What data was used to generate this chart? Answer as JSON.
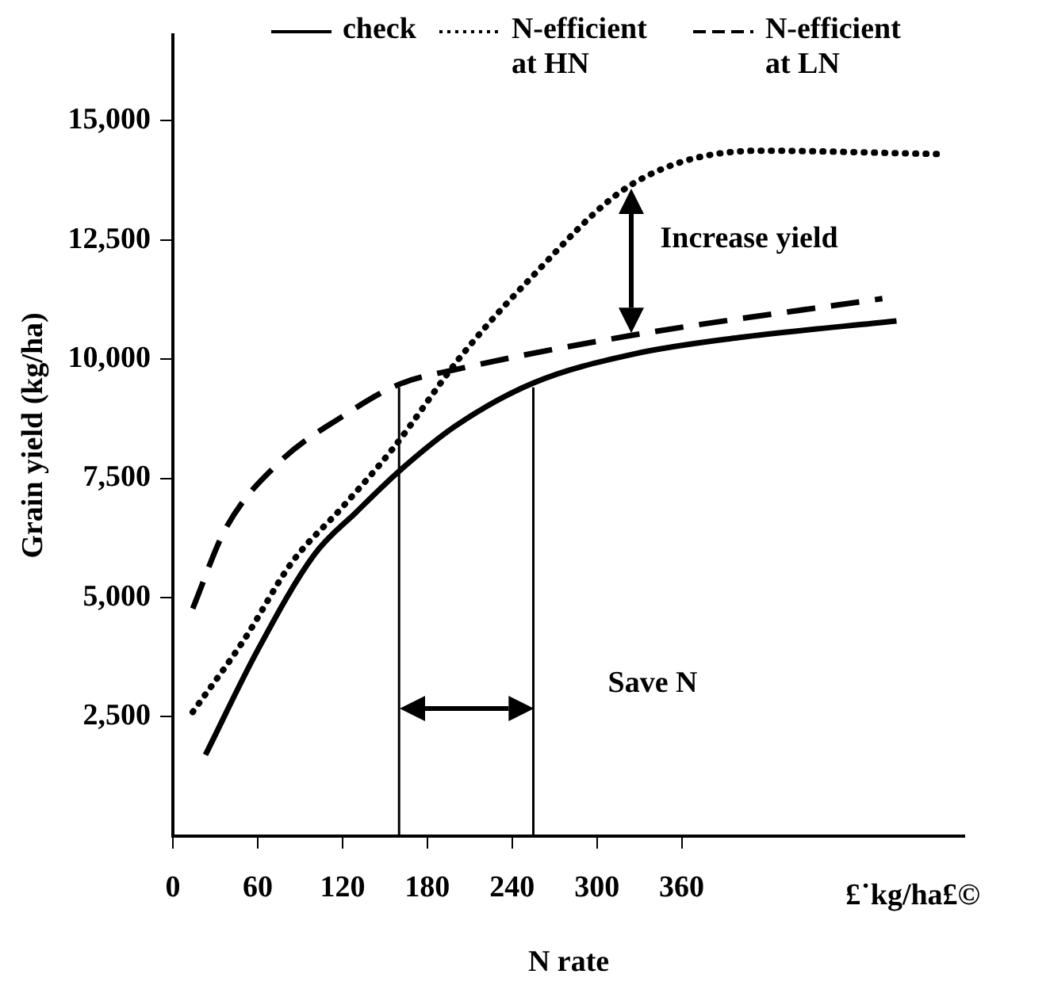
{
  "chart_data": {
    "type": "line",
    "xlabel": "N rate",
    "ylabel": "Grain yield (kg/ha)",
    "xlim": [
      0,
      560
    ],
    "ylim": [
      0,
      16800
    ],
    "xticks": [
      0,
      60,
      120,
      180,
      240,
      300,
      360
    ],
    "yticks": [
      {
        "value": 2500,
        "label": "2,500"
      },
      {
        "value": 5000,
        "label": "5,000"
      },
      {
        "value": 7500,
        "label": "7,500"
      },
      {
        "value": 10000,
        "label": "10,000"
      },
      {
        "value": 12500,
        "label": "12,500"
      },
      {
        "value": 15000,
        "label": "15,000"
      }
    ],
    "grid": false,
    "legend": "top",
    "marker": "none",
    "series": [
      {
        "name": "check",
        "color": "#000000",
        "line_style": "solid",
        "x": [
          23,
          60,
          100,
          130,
          160,
          200,
          255,
          325,
          400,
          512
        ],
        "values": [
          1700,
          3900,
          5900,
          6800,
          7650,
          8600,
          9500,
          10100,
          10450,
          10800
        ]
      },
      {
        "name": "N-efficient at HN",
        "color": "#000000",
        "line_style": "dotted",
        "x": [
          14,
          50,
          84,
          120,
          155,
          203,
          249,
          325,
          415,
          542
        ],
        "values": [
          2600,
          4100,
          5730,
          6900,
          8100,
          10030,
          11570,
          13670,
          14370,
          14300
        ]
      },
      {
        "name": "N-efficient at LN",
        "color": "#000000",
        "line_style": "dashed",
        "x": [
          14,
          37,
          75,
          120,
          160,
          203,
          325,
          502
        ],
        "values": [
          4770,
          6430,
          7830,
          8800,
          9470,
          9800,
          10500,
          11270
        ]
      }
    ],
    "ref_lines": [
      {
        "axis": "x",
        "value": 160
      },
      {
        "axis": "x",
        "value": 255
      }
    ],
    "annotations": [
      "Increase yield",
      "Save N",
      "£˙kg/ha£©"
    ]
  }
}
